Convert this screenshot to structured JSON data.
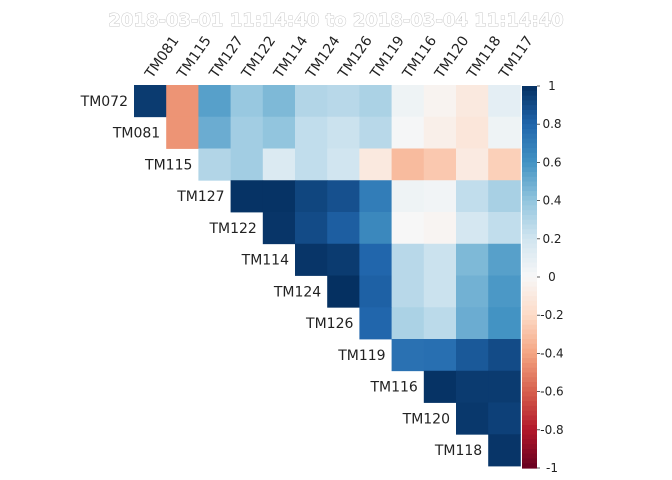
{
  "chart_data": {
    "type": "heatmap",
    "title": "2018-03-01 11:14:40  to  2018-03-04 11:14:40",
    "row_labels": [
      "TM072",
      "TM081",
      "TM115",
      "TM127",
      "TM122",
      "TM114",
      "TM124",
      "TM126",
      "TM119",
      "TM116",
      "TM120",
      "TM118"
    ],
    "column_labels": [
      "TM081",
      "TM115",
      "TM127",
      "TM122",
      "TM114",
      "TM124",
      "TM126",
      "TM119",
      "TM116",
      "TM120",
      "TM118",
      "TM117"
    ],
    "layout": "upper-triangle",
    "values": [
      [
        0.96,
        -0.45,
        0.55,
        0.38,
        0.45,
        0.3,
        0.28,
        0.32,
        0.05,
        -0.03,
        -0.1,
        0.1
      ],
      [
        null,
        -0.45,
        0.5,
        0.35,
        0.4,
        0.25,
        0.22,
        0.28,
        0.01,
        -0.06,
        -0.12,
        0.05
      ],
      [
        null,
        null,
        0.3,
        0.35,
        0.15,
        0.25,
        0.2,
        -0.1,
        -0.32,
        -0.27,
        -0.09,
        -0.24
      ],
      [
        null,
        null,
        null,
        0.99,
        0.99,
        0.92,
        0.88,
        0.7,
        0.05,
        0.03,
        0.25,
        0.33
      ],
      [
        null,
        null,
        null,
        null,
        0.98,
        0.9,
        0.83,
        0.65,
        0.0,
        -0.02,
        0.18,
        0.25
      ],
      [
        null,
        null,
        null,
        null,
        null,
        0.98,
        0.96,
        0.8,
        0.28,
        0.22,
        0.45,
        0.55
      ],
      [
        null,
        null,
        null,
        null,
        null,
        null,
        1.0,
        0.82,
        0.28,
        0.22,
        0.48,
        0.58
      ],
      [
        null,
        null,
        null,
        null,
        null,
        null,
        null,
        0.8,
        0.32,
        0.27,
        0.5,
        0.6
      ],
      [
        null,
        null,
        null,
        null,
        null,
        null,
        null,
        null,
        0.75,
        0.76,
        0.85,
        0.9
      ],
      [
        null,
        null,
        null,
        null,
        null,
        null,
        null,
        null,
        null,
        0.99,
        0.96,
        0.96
      ],
      [
        null,
        null,
        null,
        null,
        null,
        null,
        null,
        null,
        null,
        null,
        0.97,
        0.94
      ],
      [
        null,
        null,
        null,
        null,
        null,
        null,
        null,
        null,
        null,
        null,
        null,
        0.98
      ]
    ],
    "color_scale": {
      "min": -1,
      "max": 1,
      "ticks": [
        "1",
        "0.8",
        "0.6",
        "0.4",
        "0.2",
        "0",
        "-0.2",
        "-0.4",
        "-0.6",
        "-0.8",
        "-1"
      ],
      "colors": [
        "#67001f",
        "#b2182b",
        "#d6604d",
        "#f4a582",
        "#fddbc7",
        "#f7f7f7",
        "#d1e5f0",
        "#92c5de",
        "#4393c3",
        "#2166ac",
        "#053061"
      ]
    },
    "legend": "right"
  }
}
